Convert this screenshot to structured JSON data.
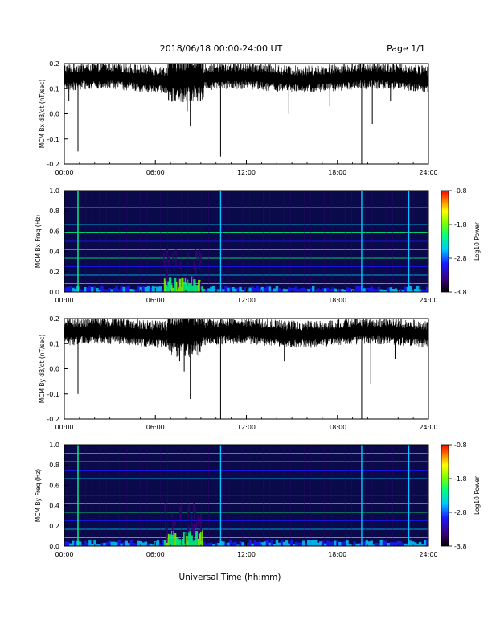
{
  "header": {
    "title": "2018/06/18   00:00-24:00 UT",
    "page": "Page 1/1"
  },
  "xlabel": "Universal Time (hh:mm)",
  "colors": {
    "trace": "#000000",
    "spectrogram_background": "#0a0a4a",
    "colorbar_stops": [
      "#000000",
      "#3a0078",
      "#1a1aff",
      "#00c8ff",
      "#00ff80",
      "#80ff00",
      "#ffff00",
      "#ff8000",
      "#ff0000"
    ]
  },
  "chart_data": [
    {
      "type": "line",
      "ylabel": "MCM Bx dB/dt (nT/sec)",
      "xlim": [
        0,
        24
      ],
      "ylim": [
        -0.2,
        0.2
      ],
      "x_ticks": [
        "00:00",
        "06:00",
        "12:00",
        "18:00",
        "24:00"
      ],
      "y_ticks": [
        "-0.2",
        "-0.1",
        "0.0",
        "0.1",
        "0.2"
      ],
      "baseline": 0.14,
      "noise_band": [
        0.09,
        0.2
      ],
      "spikes": [
        {
          "x": 0.9,
          "y": -0.15
        },
        {
          "x": 0.3,
          "y": 0.05
        },
        {
          "x": 7.6,
          "y": 0.07
        },
        {
          "x": 8.1,
          "y": 0.01
        },
        {
          "x": 8.3,
          "y": -0.05
        },
        {
          "x": 10.3,
          "y": -0.17
        },
        {
          "x": 14.8,
          "y": 0.0
        },
        {
          "x": 17.5,
          "y": 0.03
        },
        {
          "x": 19.6,
          "y": -0.2
        },
        {
          "x": 20.3,
          "y": -0.04
        },
        {
          "x": 21.5,
          "y": 0.05
        }
      ]
    },
    {
      "type": "heatmap",
      "ylabel": "MCM Bx Freq (Hz)",
      "colorbar_label": "Log10 Power",
      "xlim": [
        0,
        24
      ],
      "ylim": [
        0,
        1.0
      ],
      "x_ticks": [
        "00:00",
        "06:00",
        "12:00",
        "18:00",
        "24:00"
      ],
      "y_ticks": [
        "0.0",
        "0.2",
        "0.4",
        "0.6",
        "0.8",
        "1.0"
      ],
      "colorbar_ticks": [
        "-0.8",
        "-1.8",
        "-2.8",
        "-3.8"
      ],
      "color_range": [
        -3.8,
        -0.8
      ],
      "harmonic_lines_hz": [
        0.083,
        0.167,
        0.25,
        0.333,
        0.417,
        0.5,
        0.583,
        0.667,
        0.75,
        0.833,
        0.917
      ],
      "broadband_events_ut": [
        0.9,
        10.3,
        19.6,
        22.7
      ],
      "active_interval_ut": [
        6.5,
        9.0
      ]
    },
    {
      "type": "line",
      "ylabel": "MCM By dB/dt (nT/sec)",
      "xlim": [
        0,
        24
      ],
      "ylim": [
        -0.2,
        0.2
      ],
      "x_ticks": [
        "00:00",
        "06:00",
        "12:00",
        "18:00",
        "24:00"
      ],
      "y_ticks": [
        "-0.2",
        "-0.1",
        "0.0",
        "0.1",
        "0.2"
      ],
      "baseline": 0.14,
      "noise_band": [
        0.07,
        0.2
      ],
      "spikes": [
        {
          "x": 0.9,
          "y": -0.1
        },
        {
          "x": 7.6,
          "y": 0.03
        },
        {
          "x": 7.9,
          "y": -0.01
        },
        {
          "x": 8.3,
          "y": -0.12
        },
        {
          "x": 10.3,
          "y": -0.2
        },
        {
          "x": 14.5,
          "y": 0.03
        },
        {
          "x": 19.6,
          "y": -0.2
        },
        {
          "x": 20.2,
          "y": -0.06
        },
        {
          "x": 21.8,
          "y": 0.04
        }
      ]
    },
    {
      "type": "heatmap",
      "ylabel": "MCM By Freq (Hz)",
      "colorbar_label": "Log10 Power",
      "xlim": [
        0,
        24
      ],
      "ylim": [
        0,
        1.0
      ],
      "x_ticks": [
        "00:00",
        "06:00",
        "12:00",
        "18:00",
        "24:00"
      ],
      "y_ticks": [
        "0.0",
        "0.2",
        "0.4",
        "0.6",
        "0.8",
        "1.0"
      ],
      "colorbar_ticks": [
        "-0.8",
        "-1.8",
        "-2.8",
        "-3.8"
      ],
      "color_range": [
        -3.8,
        -0.8
      ],
      "harmonic_lines_hz": [
        0.083,
        0.167,
        0.25,
        0.333,
        0.417,
        0.5,
        0.583,
        0.667,
        0.75,
        0.833,
        0.917
      ],
      "broadband_events_ut": [
        0.9,
        10.3,
        19.6,
        22.7
      ],
      "active_interval_ut": [
        6.5,
        9.0
      ]
    }
  ]
}
